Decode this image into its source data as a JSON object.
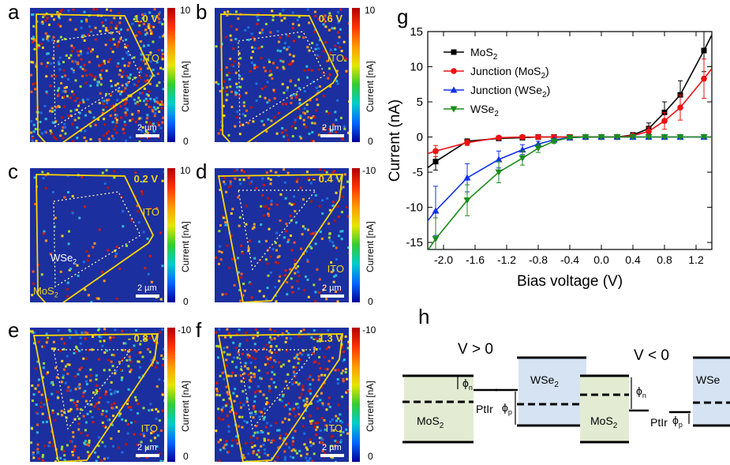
{
  "panels": {
    "a": {
      "letter": "a",
      "voltage": "1.0 V",
      "ito": "ITO",
      "scale": "2 µm",
      "cb_top": "10",
      "cb_bottom": "0",
      "cb_title": "Current [nA]"
    },
    "b": {
      "letter": "b",
      "voltage": "0.6 V",
      "ito": "ITO",
      "scale": "2 µm",
      "cb_top": "10",
      "cb_bottom": "0",
      "cb_title": "Current [nA]"
    },
    "c": {
      "letter": "c",
      "voltage": "0.2 V",
      "ito": "ITO",
      "scale": "2 µm",
      "cb_top": "10",
      "cb_bottom": "0",
      "cb_title": "Current [nA]",
      "wse2": "WSe",
      "mos2": "MoS"
    },
    "d": {
      "letter": "d",
      "voltage": "- 0.4 V",
      "ito": "ITO",
      "scale": "2 µm",
      "cb_top": "-10",
      "cb_bottom": "0",
      "cb_title": "Current [nA]"
    },
    "e": {
      "letter": "e",
      "voltage": "- 0.8 V",
      "ito": "ITO",
      "scale": "2 µm",
      "cb_top": "-10",
      "cb_bottom": "0",
      "cb_title": "Current [nA]"
    },
    "f": {
      "letter": "f",
      "voltage": "- 1.3 V",
      "ito": "ITO",
      "scale": "2 µm",
      "cb_top": "-10",
      "cb_bottom": "0",
      "cb_title": "Current [nA]"
    }
  },
  "sub2": "2",
  "panel_g": {
    "letter": "g"
  },
  "panel_h": {
    "letter": "h",
    "left_condition": "V > 0",
    "right_condition": "V < 0",
    "mos2": "MoS",
    "wse2": "WSe",
    "ptir": "PtIr",
    "phi_n": "ϕ",
    "phi_p": "ϕ",
    "sub_n": "n",
    "sub_p": "p"
  },
  "chart_data": {
    "type": "line",
    "title": "",
    "xlabel": "Bias voltage (V)",
    "ylabel": "Current (nA)",
    "xlim": [
      -2.2,
      1.4
    ],
    "ylim": [
      -16,
      15
    ],
    "xticks": [
      -2.0,
      -1.6,
      -1.2,
      -0.8,
      -0.4,
      0.0,
      0.4,
      0.8,
      1.2
    ],
    "xtick_labels": [
      "-2.0",
      "-1.6",
      "-1.2",
      "-0.8",
      "-0.4",
      "0.0",
      "0.4",
      "0.8",
      "1.2"
    ],
    "yticks": [
      -15,
      -10,
      -5,
      0,
      5,
      10,
      15
    ],
    "ytick_labels": [
      "-15",
      "-10",
      "-5",
      "0",
      "5",
      "10",
      "15"
    ],
    "legend_position": "top-left",
    "series": [
      {
        "name": "MoS2",
        "legend": "MoS",
        "sub": "2",
        "suffix": "",
        "color": "#000000",
        "marker": "square",
        "x": [
          -2.1,
          -1.7,
          -1.3,
          -1.0,
          -0.8,
          -0.6,
          -0.4,
          -0.2,
          0.0,
          0.2,
          0.4,
          0.6,
          0.8,
          1.0,
          1.3
        ],
        "y": [
          -3.5,
          -0.6,
          -0.2,
          -0.1,
          0,
          0,
          0,
          0,
          0,
          0,
          0.3,
          1.2,
          3.5,
          6.0,
          12.3
        ],
        "err": [
          1.2,
          0.3,
          0.1,
          0,
          0,
          0,
          0,
          0,
          0,
          0,
          0.3,
          0.8,
          1.5,
          2.0,
          3.0
        ]
      },
      {
        "name": "Junction (MoS2)",
        "legend": "Junction (MoS",
        "sub": "2",
        "suffix": ")",
        "color": "#ee1111",
        "marker": "circle",
        "x": [
          -2.1,
          -1.7,
          -1.3,
          -1.0,
          -0.8,
          -0.6,
          -0.4,
          -0.2,
          0.0,
          0.2,
          0.4,
          0.6,
          0.8,
          1.0,
          1.3
        ],
        "y": [
          -2.0,
          -0.8,
          -0.1,
          0,
          0,
          0,
          0,
          0,
          0,
          0,
          0.2,
          0.8,
          2.3,
          4.2,
          8.3
        ],
        "err": [
          0.8,
          0.4,
          0.1,
          0,
          0,
          0,
          0,
          0,
          0,
          0,
          0.2,
          0.6,
          1.2,
          1.8,
          2.8
        ]
      },
      {
        "name": "Junction (WSe2)",
        "legend": "Junction (WSe",
        "sub": "2",
        "suffix": ")",
        "color": "#1030ee",
        "marker": "triangle-up",
        "x": [
          -2.1,
          -1.7,
          -1.3,
          -1.0,
          -0.8,
          -0.6,
          -0.4,
          -0.2,
          0.0,
          0.2,
          0.4,
          0.6,
          0.8,
          1.0,
          1.3
        ],
        "y": [
          -10.5,
          -5.8,
          -3.2,
          -1.8,
          -1.0,
          -0.4,
          -0.1,
          0,
          0,
          0,
          0,
          0,
          0,
          0,
          0
        ],
        "err": [
          3.5,
          2.0,
          1.2,
          0.7,
          0.4,
          0.2,
          0.1,
          0,
          0,
          0,
          0,
          0,
          0,
          0,
          0
        ]
      },
      {
        "name": "WSe2",
        "legend": "WSe",
        "sub": "2",
        "suffix": "",
        "color": "#1a8c1a",
        "marker": "triangle-down",
        "x": [
          -2.1,
          -1.7,
          -1.3,
          -1.0,
          -0.8,
          -0.6,
          -0.4,
          -0.2,
          0.0,
          0.2,
          0.4,
          0.6,
          0.8,
          1.0,
          1.3
        ],
        "y": [
          -14.5,
          -9.0,
          -5.0,
          -3.0,
          -1.6,
          -0.6,
          -0.1,
          0,
          0,
          0,
          0,
          0,
          0,
          0,
          0
        ],
        "err": [
          3.0,
          2.2,
          1.5,
          1.0,
          0.6,
          0.3,
          0.1,
          0,
          0,
          0,
          0,
          0,
          0,
          0,
          0
        ]
      }
    ]
  }
}
